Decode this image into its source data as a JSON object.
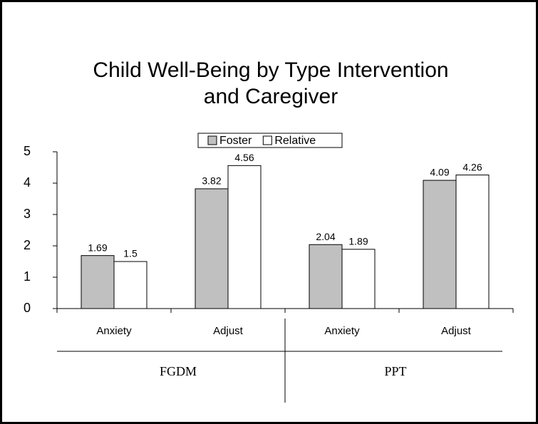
{
  "chart_data": {
    "type": "bar",
    "title": "Child Well-Being by Type Intervention and Caregiver",
    "categories": [
      "Anxiety",
      "Adjust",
      "Anxiety",
      "Adjust"
    ],
    "groups": [
      "FGDM",
      "PPT"
    ],
    "series": [
      {
        "name": "Foster",
        "color": "#c0c0c0",
        "values": [
          1.69,
          3.82,
          2.04,
          4.09
        ]
      },
      {
        "name": "Relative",
        "color": "#ffffff",
        "values": [
          1.5,
          4.56,
          1.89,
          4.26
        ]
      }
    ],
    "ylim": [
      0,
      5
    ],
    "yticks": [
      0,
      1,
      2,
      3,
      4,
      5
    ],
    "legend": "top"
  }
}
